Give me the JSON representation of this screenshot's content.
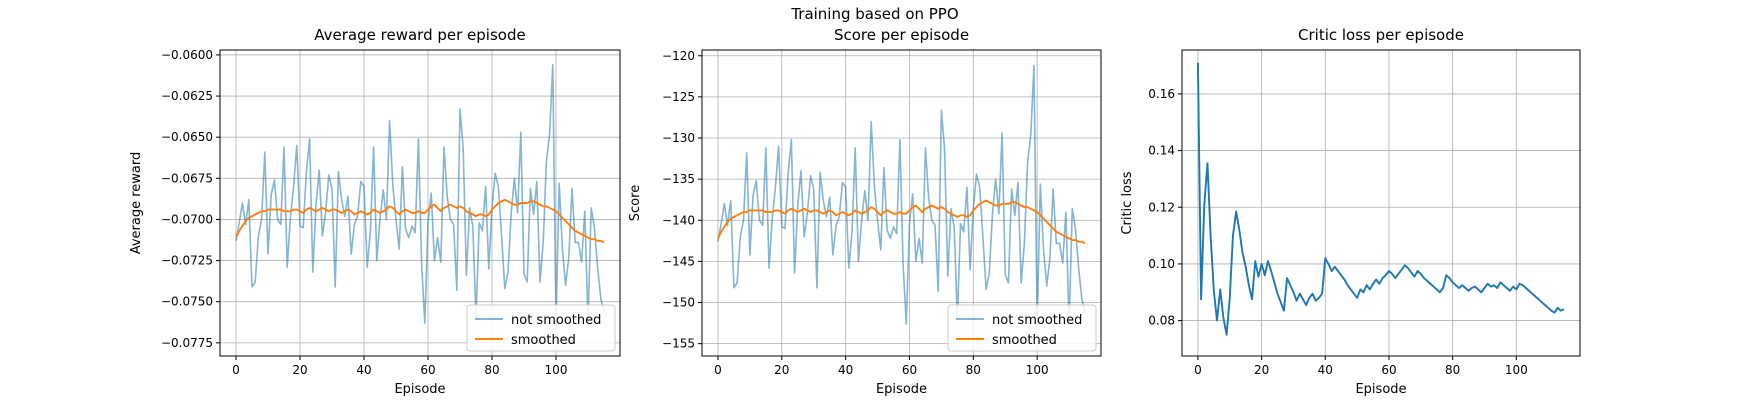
{
  "suptitle": "Training based on PPO",
  "colors": {
    "raw": "#1f77b4",
    "smoothed": "#ff7f0e",
    "grid": "#b0b0b0",
    "axis": "#000000"
  },
  "chart_data": [
    {
      "type": "line",
      "title": "Average reward per episode",
      "xlabel": "Episode",
      "ylabel": "Average reward",
      "xlim": [
        -5,
        120
      ],
      "ylim": [
        -0.0783,
        -0.0597
      ],
      "xticks": [
        0,
        20,
        40,
        60,
        80,
        100
      ],
      "yticks": [
        -0.06,
        -0.0625,
        -0.065,
        -0.0675,
        -0.07,
        -0.0725,
        -0.075,
        -0.0775
      ],
      "ytick_labels": [
        "−0.0600",
        "−0.0625",
        "−0.0650",
        "−0.0675",
        "−0.0700",
        "−0.0725",
        "−0.0750",
        "−0.0775"
      ],
      "grid": true,
      "legend": "lower right",
      "series": [
        {
          "name": "not smoothed",
          "color": "#1f77b4",
          "alpha": 0.55,
          "values": [
            -0.0713,
            -0.0702,
            -0.069,
            -0.0703,
            -0.0688,
            -0.0741,
            -0.0738,
            -0.071,
            -0.07,
            -0.0659,
            -0.0721,
            -0.0685,
            -0.0676,
            -0.07,
            -0.0703,
            -0.0656,
            -0.0729,
            -0.0699,
            -0.068,
            -0.0655,
            -0.0704,
            -0.0705,
            -0.0671,
            -0.0651,
            -0.0732,
            -0.0691,
            -0.067,
            -0.071,
            -0.0696,
            -0.0673,
            -0.0681,
            -0.0741,
            -0.0671,
            -0.0688,
            -0.0698,
            -0.0686,
            -0.0721,
            -0.0703,
            -0.0698,
            -0.0677,
            -0.068,
            -0.0729,
            -0.0707,
            -0.0656,
            -0.0725,
            -0.07,
            -0.0682,
            -0.07,
            -0.064,
            -0.0679,
            -0.07,
            -0.0718,
            -0.0668,
            -0.0706,
            -0.0711,
            -0.0704,
            -0.0708,
            -0.0651,
            -0.0727,
            -0.0763,
            -0.0702,
            -0.0684,
            -0.0725,
            -0.0711,
            -0.0726,
            -0.0656,
            -0.0686,
            -0.07,
            -0.0703,
            -0.0743,
            -0.0633,
            -0.0657,
            -0.0734,
            -0.0693,
            -0.0704,
            -0.076,
            -0.0702,
            -0.0707,
            -0.068,
            -0.073,
            -0.0693,
            -0.0672,
            -0.068,
            -0.071,
            -0.0742,
            -0.0732,
            -0.0696,
            -0.0675,
            -0.0696,
            -0.0647,
            -0.0733,
            -0.0738,
            -0.0681,
            -0.0697,
            -0.0677,
            -0.0738,
            -0.0714,
            -0.0665,
            -0.0648,
            -0.0606,
            -0.0763,
            -0.0678,
            -0.0718,
            -0.074,
            -0.0723,
            -0.0681,
            -0.0714,
            -0.0714,
            -0.0726,
            -0.0695,
            -0.0763,
            -0.0693,
            -0.0705,
            -0.0729,
            -0.0748,
            -0.0756
          ]
        },
        {
          "name": "smoothed",
          "color": "#ff7f0e",
          "alpha": 1,
          "values": [
            -0.0711,
            -0.0707,
            -0.0704,
            -0.0701,
            -0.0699,
            -0.0698,
            -0.0697,
            -0.0696,
            -0.0695,
            -0.0695,
            -0.0694,
            -0.0694,
            -0.0694,
            -0.0694,
            -0.0694,
            -0.0695,
            -0.0695,
            -0.0695,
            -0.0694,
            -0.0694,
            -0.0695,
            -0.0696,
            -0.0694,
            -0.0693,
            -0.0694,
            -0.0695,
            -0.0694,
            -0.0693,
            -0.0694,
            -0.0695,
            -0.0694,
            -0.0694,
            -0.0695,
            -0.0696,
            -0.0695,
            -0.0694,
            -0.0695,
            -0.0697,
            -0.0696,
            -0.0695,
            -0.0696,
            -0.0697,
            -0.0696,
            -0.0694,
            -0.0695,
            -0.0696,
            -0.0695,
            -0.0694,
            -0.0692,
            -0.0693,
            -0.0695,
            -0.0697,
            -0.0695,
            -0.0694,
            -0.0695,
            -0.0696,
            -0.0696,
            -0.0695,
            -0.0696,
            -0.0696,
            -0.0694,
            -0.0692,
            -0.0691,
            -0.0693,
            -0.0695,
            -0.0693,
            -0.0692,
            -0.0691,
            -0.0692,
            -0.0693,
            -0.0692,
            -0.0693,
            -0.0695,
            -0.0696,
            -0.0697,
            -0.0698,
            -0.0697,
            -0.0697,
            -0.0698,
            -0.0697,
            -0.0694,
            -0.0692,
            -0.069,
            -0.0689,
            -0.0688,
            -0.0689,
            -0.069,
            -0.0691,
            -0.0691,
            -0.069,
            -0.069,
            -0.069,
            -0.0689,
            -0.0689,
            -0.069,
            -0.0691,
            -0.0692,
            -0.0692,
            -0.0693,
            -0.0694,
            -0.0695,
            -0.0697,
            -0.0699,
            -0.0701,
            -0.0703,
            -0.0705,
            -0.0707,
            -0.0708,
            -0.0709,
            -0.071,
            -0.0711,
            -0.0712,
            -0.0712,
            -0.0713,
            -0.0713,
            -0.0714
          ]
        }
      ]
    },
    {
      "type": "line",
      "title": "Score per episode",
      "xlabel": "Episode",
      "ylabel": "Score",
      "xlim": [
        -5,
        120
      ],
      "ylim": [
        -156.5,
        -119.3
      ],
      "xticks": [
        0,
        20,
        40,
        60,
        80,
        100
      ],
      "yticks": [
        -120,
        -125,
        -130,
        -135,
        -140,
        -145,
        -150,
        -155
      ],
      "ytick_labels": [
        "−120",
        "−125",
        "−130",
        "−135",
        "−140",
        "−145",
        "−150",
        "−155"
      ],
      "grid": true,
      "legend": "lower right",
      "series": [
        {
          "name": "not smoothed",
          "color": "#1f77b4",
          "alpha": 0.55,
          "values": [
            -142.6,
            -140.4,
            -138.0,
            -140.6,
            -137.6,
            -148.2,
            -147.6,
            -142.0,
            -140.0,
            -131.8,
            -144.2,
            -137.0,
            -135.2,
            -140.0,
            -140.6,
            -131.2,
            -145.8,
            -139.8,
            -136.0,
            -131.0,
            -140.8,
            -141.0,
            -134.2,
            -130.2,
            -146.4,
            -138.2,
            -134.0,
            -142.0,
            -139.2,
            -134.6,
            -136.2,
            -148.2,
            -134.2,
            -137.6,
            -139.6,
            -137.2,
            -144.2,
            -140.6,
            -139.6,
            -135.4,
            -136.0,
            -145.8,
            -141.4,
            -131.2,
            -145.0,
            -140.0,
            -136.4,
            -140.0,
            -128.0,
            -135.8,
            -140.0,
            -143.6,
            -133.6,
            -141.2,
            -142.2,
            -140.8,
            -141.6,
            -130.2,
            -145.4,
            -152.6,
            -140.4,
            -136.8,
            -145.0,
            -142.2,
            -145.2,
            -131.2,
            -137.2,
            -140.0,
            -140.6,
            -148.6,
            -126.6,
            -131.4,
            -146.8,
            -138.6,
            -140.8,
            -152.0,
            -140.4,
            -141.4,
            -136.0,
            -146.0,
            -138.6,
            -134.4,
            -136.0,
            -142.0,
            -148.4,
            -146.4,
            -139.2,
            -135.0,
            -139.2,
            -129.4,
            -146.6,
            -147.6,
            -136.2,
            -139.4,
            -135.4,
            -147.6,
            -142.8,
            -133.0,
            -129.6,
            -121.2,
            -152.6,
            -135.6,
            -143.6,
            -148.0,
            -144.6,
            -136.2,
            -142.8,
            -142.8,
            -145.2,
            -139.0,
            -152.6,
            -138.6,
            -141.0,
            -145.8,
            -149.6,
            -151.2
          ]
        },
        {
          "name": "smoothed",
          "color": "#ff7f0e",
          "alpha": 1,
          "values": [
            -142.2,
            -141.4,
            -140.8,
            -140.2,
            -139.8,
            -139.6,
            -139.4,
            -139.2,
            -139.0,
            -139.0,
            -138.8,
            -138.8,
            -138.8,
            -138.8,
            -138.8,
            -139.0,
            -139.0,
            -139.0,
            -138.8,
            -138.8,
            -139.0,
            -139.2,
            -138.8,
            -138.6,
            -138.8,
            -139.0,
            -138.8,
            -138.6,
            -138.8,
            -139.0,
            -138.8,
            -138.8,
            -139.0,
            -139.2,
            -139.0,
            -138.8,
            -139.0,
            -139.4,
            -139.2,
            -139.0,
            -139.2,
            -139.4,
            -139.2,
            -138.8,
            -139.0,
            -139.2,
            -139.0,
            -138.8,
            -138.4,
            -138.6,
            -139.0,
            -139.4,
            -139.0,
            -138.8,
            -139.0,
            -139.2,
            -139.2,
            -139.0,
            -139.2,
            -139.2,
            -138.8,
            -138.4,
            -138.2,
            -138.6,
            -139.0,
            -138.6,
            -138.4,
            -138.2,
            -138.4,
            -138.6,
            -138.4,
            -138.6,
            -139.0,
            -139.2,
            -139.4,
            -139.6,
            -139.4,
            -139.4,
            -139.6,
            -139.4,
            -138.8,
            -138.4,
            -138.0,
            -137.8,
            -137.6,
            -137.8,
            -138.0,
            -138.2,
            -138.2,
            -138.0,
            -138.0,
            -138.0,
            -137.8,
            -137.8,
            -138.0,
            -138.2,
            -138.4,
            -138.4,
            -138.6,
            -138.8,
            -139.0,
            -139.4,
            -139.8,
            -140.2,
            -140.6,
            -141.0,
            -141.4,
            -141.6,
            -141.8,
            -142.0,
            -142.2,
            -142.4,
            -142.4,
            -142.6,
            -142.6,
            -142.8
          ]
        }
      ]
    },
    {
      "type": "line",
      "title": "Critic loss per episode",
      "xlabel": "Episode",
      "ylabel": "Critic loss",
      "xlim": [
        -5,
        120
      ],
      "ylim": [
        0.0675,
        0.1755
      ],
      "xticks": [
        0,
        20,
        40,
        60,
        80,
        100
      ],
      "yticks": [
        0.08,
        0.1,
        0.12,
        0.14,
        0.16
      ],
      "ytick_labels": [
        "0.08",
        "0.10",
        "0.12",
        "0.14",
        "0.16"
      ],
      "grid": true,
      "legend": "none",
      "series": [
        {
          "name": "",
          "color": "#1f77b4",
          "alpha": 1,
          "values": [
            0.171,
            0.0875,
            0.121,
            0.1355,
            0.1095,
            0.0905,
            0.08,
            0.091,
            0.081,
            0.075,
            0.088,
            0.11,
            0.1185,
            0.112,
            0.104,
            0.099,
            0.0925,
            0.0875,
            0.101,
            0.0955,
            0.1,
            0.096,
            0.101,
            0.0975,
            0.0935,
            0.0895,
            0.0865,
            0.0835,
            0.095,
            0.0925,
            0.09,
            0.087,
            0.0895,
            0.0875,
            0.0855,
            0.088,
            0.0895,
            0.087,
            0.088,
            0.0895,
            0.102,
            0.1,
            0.0975,
            0.099,
            0.0975,
            0.096,
            0.0945,
            0.0925,
            0.091,
            0.0895,
            0.088,
            0.091,
            0.09,
            0.0925,
            0.091,
            0.093,
            0.0945,
            0.093,
            0.095,
            0.096,
            0.0975,
            0.0965,
            0.095,
            0.0965,
            0.098,
            0.0995,
            0.0985,
            0.097,
            0.0955,
            0.0975,
            0.0965,
            0.095,
            0.094,
            0.093,
            0.092,
            0.091,
            0.09,
            0.0915,
            0.096,
            0.095,
            0.0935,
            0.0925,
            0.0915,
            0.0925,
            0.0915,
            0.0905,
            0.0915,
            0.092,
            0.091,
            0.09,
            0.0915,
            0.093,
            0.092,
            0.0925,
            0.0915,
            0.0935,
            0.0925,
            0.0915,
            0.0905,
            0.092,
            0.091,
            0.093,
            0.0925,
            0.0915,
            0.0905,
            0.0895,
            0.0885,
            0.0875,
            0.0865,
            0.0855,
            0.0845,
            0.0835,
            0.0828,
            0.0845,
            0.0835,
            0.084
          ]
        }
      ]
    }
  ]
}
